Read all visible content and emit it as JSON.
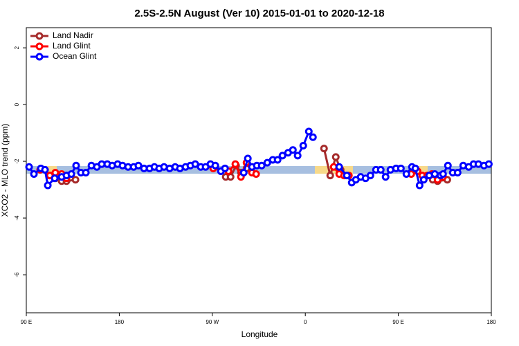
{
  "chart_data": {
    "type": "line",
    "title": "2.5S-2.5N August (Ver 10)   2015-01-01 to 2020-12-18",
    "xlabel": "Longitude",
    "ylabel": "XCO2 - MLO trend (ppm)",
    "xlim": [
      90,
      540
    ],
    "xticks": [
      {
        "value": 90,
        "label": "90 E"
      },
      {
        "value": 180,
        "label": "180"
      },
      {
        "value": 270,
        "label": "90 W"
      },
      {
        "value": 360,
        "label": "0"
      },
      {
        "value": 450,
        "label": "90 E"
      },
      {
        "value": 540,
        "label": "180"
      }
    ],
    "ylim": [
      -7.34,
      2.71
    ],
    "yticks": [
      2,
      0,
      -2,
      -4,
      -6
    ],
    "legend": "top-left",
    "series": [
      {
        "name": "Land Nadir",
        "color": "#a52a2a",
        "x": [
          112.8,
          118.1,
          124.2,
          128.9,
          137.6,
          210,
          283.0,
          287.7,
          293.0,
          297.7,
          303.1,
          340,
          378.1,
          384.1,
          389.5,
          394.2,
          430,
          474.6,
          478.6,
          483.3,
          488.0,
          497.4
        ],
        "values": [
          -2.5,
          -2.6,
          -2.7,
          -2.7,
          -2.65,
          null,
          -2.55,
          -2.55,
          -2.15,
          -2.4,
          -2.25,
          null,
          -1.55,
          -2.5,
          -1.85,
          -2.3,
          null,
          -2.6,
          -2.5,
          -2.65,
          -2.7,
          -2.65
        ]
      },
      {
        "name": "Land Glint",
        "color": "#ff0000",
        "x": [
          103.4,
          112.8,
          118.1,
          124.2,
          128.9,
          200,
          270.9,
          285.6,
          292.3,
          297.7,
          303.1,
          308.4,
          312.4,
          350,
          387.5,
          392.8,
          397.5,
          402.2,
          430,
          462.5,
          468.6,
          473.2,
          477.9,
          482.6,
          488.0,
          493.3
        ],
        "values": [
          -2.3,
          -2.5,
          -2.4,
          -2.45,
          -2.6,
          null,
          -2.25,
          -2.35,
          -2.1,
          -2.55,
          -2.05,
          -2.4,
          -2.45,
          null,
          -2.2,
          -2.45,
          -2.5,
          -2.5,
          null,
          -2.45,
          -2.35,
          -2.5,
          -2.5,
          -2.45,
          -2.65,
          -2.55
        ]
      },
      {
        "name": "Ocean Glint",
        "color": "#0000ff",
        "x": [
          92.7,
          97.4,
          104.1,
          108.1,
          110.8,
          117.5,
          124.2,
          128.9,
          133.6,
          138.2,
          142.9,
          147.6,
          153.0,
          158.3,
          163.0,
          168.4,
          173.1,
          178.4,
          183.1,
          188.5,
          193.9,
          198.5,
          203.9,
          209.3,
          214.0,
          218.6,
          223.3,
          228.7,
          234.1,
          238.7,
          244.1,
          248.8,
          253.5,
          258.8,
          263.5,
          268.2,
          272.9,
          278.3,
          282.3,
          291,
          300.4,
          304.4,
          308.4,
          313.1,
          317.8,
          323.2,
          328.5,
          333.2,
          337.9,
          343.3,
          348.0,
          352.6,
          358.0,
          363.4,
          367.4,
          380,
          392.8,
          400.2,
          404.9,
          408.9,
          413.6,
          418.3,
          423.0,
          428.4,
          433.0,
          437.7,
          442.4,
          447.8,
          452.5,
          457.8,
          463.2,
          466.5,
          470.6,
          474.6,
          479.9,
          485.3,
          490.7,
          493.3,
          498.0,
          502.7,
          507.4,
          512.8,
          518.1,
          522.8,
          527.5,
          532.9,
          537.6
        ],
        "values": [
          -2.2,
          -2.45,
          -2.25,
          -2.3,
          -2.85,
          -2.6,
          -2.55,
          -2.5,
          -2.45,
          -2.15,
          -2.4,
          -2.4,
          -2.15,
          -2.2,
          -2.1,
          -2.1,
          -2.15,
          -2.1,
          -2.15,
          -2.2,
          -2.2,
          -2.15,
          -2.25,
          -2.25,
          -2.2,
          -2.25,
          -2.2,
          -2.25,
          -2.2,
          -2.25,
          -2.2,
          -2.15,
          -2.1,
          -2.2,
          -2.2,
          -2.1,
          -2.15,
          -2.35,
          -2.25,
          null,
          -2.4,
          -1.9,
          -2.2,
          -2.15,
          -2.15,
          -2.05,
          -1.95,
          -1.95,
          -1.8,
          -1.7,
          -1.6,
          -1.8,
          -1.45,
          -0.95,
          -1.15,
          null,
          -2.2,
          -2.5,
          -2.75,
          -2.65,
          -2.55,
          -2.6,
          -2.5,
          -2.3,
          -2.3,
          -2.55,
          -2.3,
          -2.25,
          -2.25,
          -2.45,
          -2.2,
          -2.25,
          -2.85,
          -2.65,
          -2.5,
          -2.45,
          -2.5,
          -2.45,
          -2.15,
          -2.4,
          -2.4,
          -2.15,
          -2.2,
          -2.1,
          -2.1,
          -2.15,
          -2.1
        ]
      }
    ]
  }
}
